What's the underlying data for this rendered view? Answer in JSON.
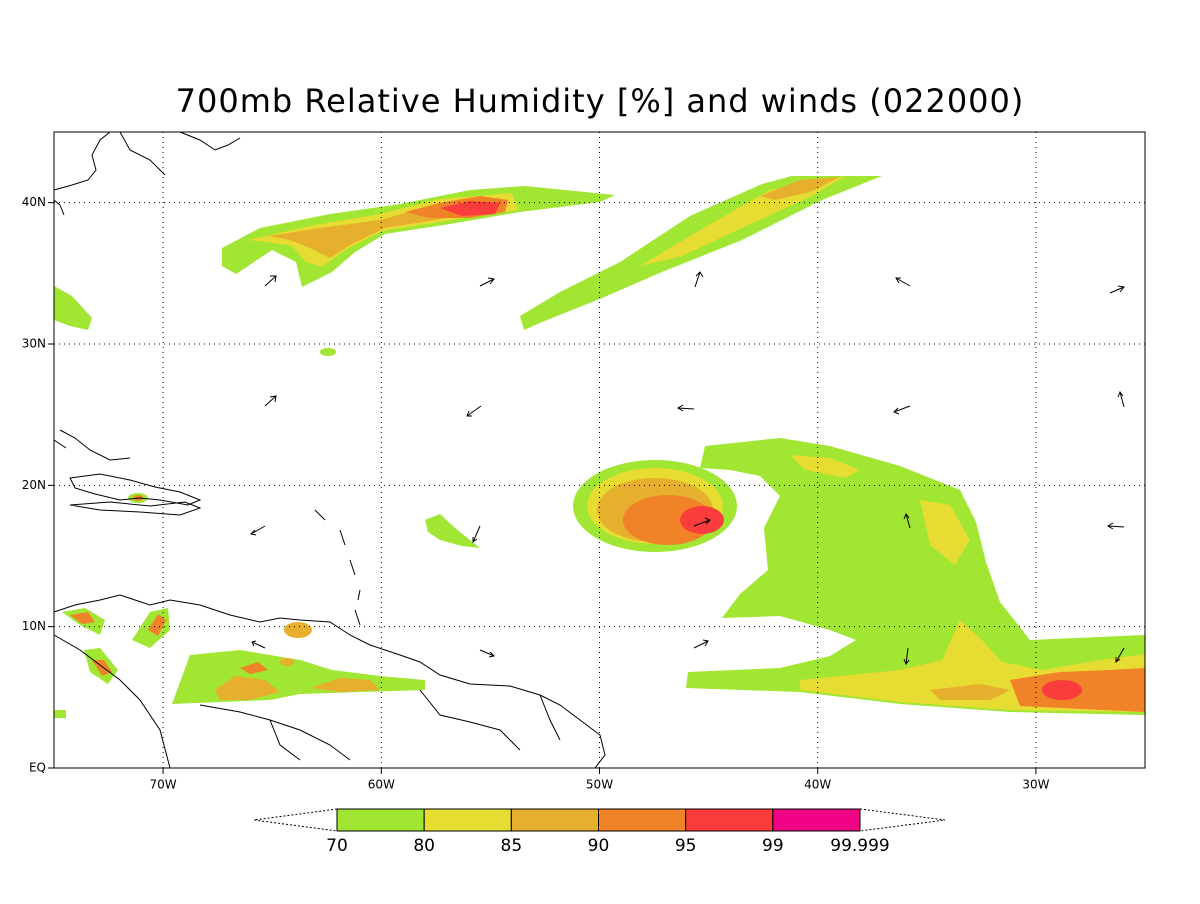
{
  "map": {
    "title": "700mb Relative Humidity [%] and winds (022000)",
    "xlim": [
      -75,
      -25
    ],
    "ylim": [
      0,
      45
    ],
    "xticks": [
      {
        "value": -70,
        "label": "70W"
      },
      {
        "value": -60,
        "label": "60W"
      },
      {
        "value": -50,
        "label": "50W"
      },
      {
        "value": -40,
        "label": "40W"
      },
      {
        "value": -30,
        "label": "30W"
      }
    ],
    "yticks": [
      {
        "value": 0,
        "label": "EQ"
      },
      {
        "value": 10,
        "label": "10N"
      },
      {
        "value": 20,
        "label": "20N"
      },
      {
        "value": 30,
        "label": "30N"
      },
      {
        "value": 40,
        "label": "40N"
      }
    ],
    "grid": true,
    "colorbar": {
      "levels": [
        70,
        80,
        85,
        90,
        95,
        99,
        99.999
      ],
      "colors": [
        "#a0e632",
        "#e6dc32",
        "#e6af2d",
        "#f08228",
        "#fa3c3c",
        "#f00082"
      ]
    }
  }
}
